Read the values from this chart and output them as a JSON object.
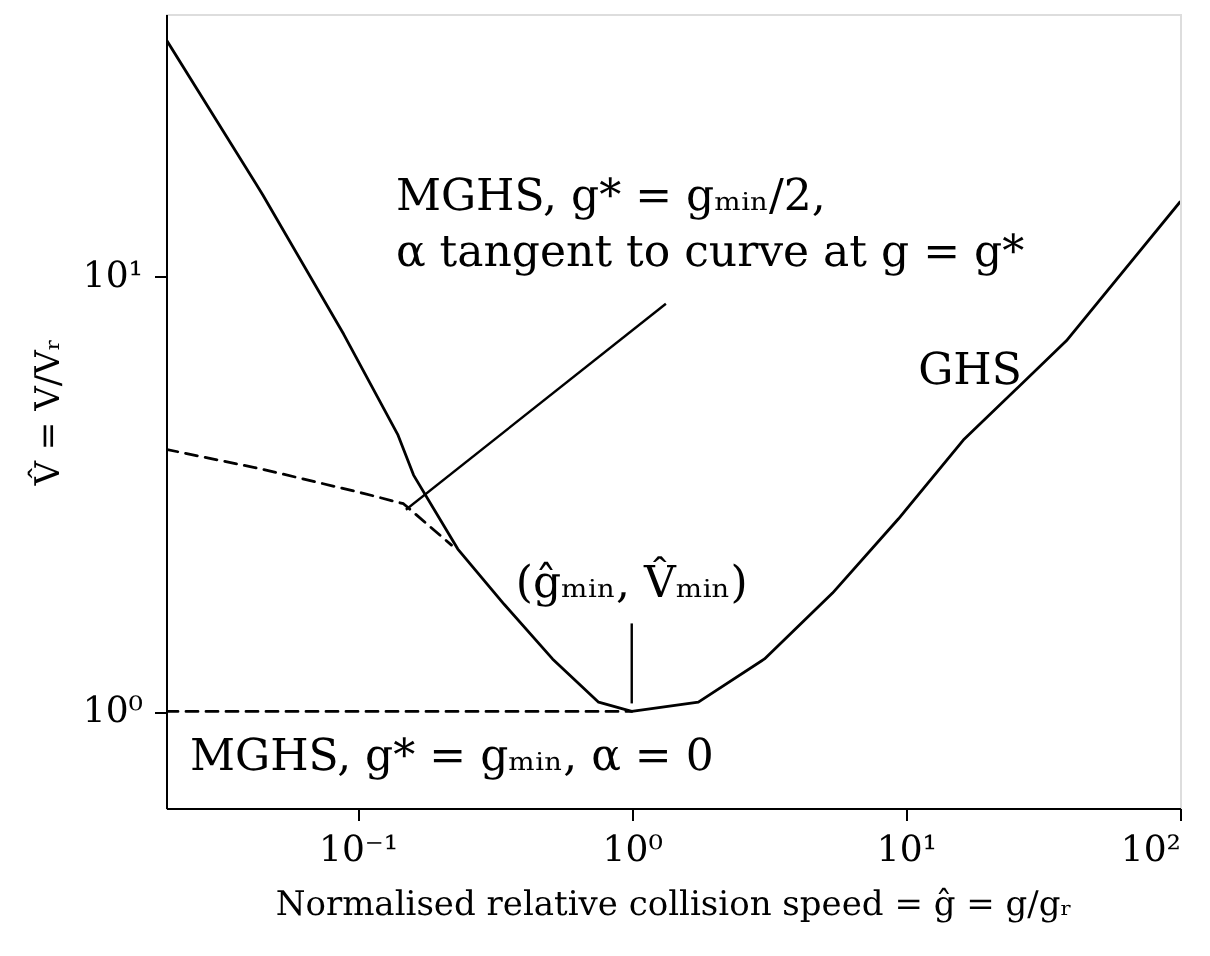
{
  "chart_data": {
    "type": "line",
    "log": "xy",
    "grid": false,
    "xlabel": "Normalised relative collision speed = ĝ = g/gᵣ",
    "ylabel": "V̂ = V/Vᵣ",
    "xlim": [
      0.02,
      100
    ],
    "ylim": [
      0.6,
      40
    ],
    "xticks": [
      {
        "value": 0.1,
        "label": "10⁻¹"
      },
      {
        "value": 1,
        "label": "10⁰"
      },
      {
        "value": 10,
        "label": "10¹"
      },
      {
        "value": 100,
        "label": "10²"
      }
    ],
    "yticks": [
      {
        "value": 1,
        "label": "10⁰"
      },
      {
        "value": 10,
        "label": "10¹"
      }
    ],
    "series": [
      {
        "color": "#000000",
        "line_style": "solid",
        "x": [
          0.02,
          0.045,
          0.089,
          0.14,
          0.16,
          0.232,
          0.343,
          0.514,
          0.757,
          1.0,
          1.75,
          3.05,
          5.4,
          9.4,
          16.2,
          38.5,
          100
        ],
        "values": [
          35,
          15.4,
          7.35,
          4.33,
          3.49,
          2.36,
          1.76,
          1.32,
          1.05,
          1.0,
          1.05,
          1.32,
          1.87,
          2.77,
          4.2,
          7.1,
          14.8
        ]
      },
      {
        "color": "#000000",
        "line_style": "dashed",
        "x": [
          0.02,
          0.045,
          0.105,
          0.147,
          0.22
        ],
        "values": [
          4.0,
          3.6,
          3.17,
          3.0,
          2.41
        ]
      },
      {
        "color": "#000000",
        "line_style": "dashed",
        "x": [
          0.02,
          1.0
        ],
        "values": [
          1.0,
          1.0
        ]
      }
    ],
    "annotations": [
      {
        "text": "MGHS, g* = gₘᵢₙ/2,\nα tangent to curve at g = g*",
        "x": 0.15,
        "y": 3.0
      },
      {
        "text": "(ĝₘᵢₙ, V̂ₘᵢₙ)",
        "x": 1,
        "y": 1
      },
      "GHS",
      "MGHS, g* = gₘᵢₙ, α = 0"
    ]
  }
}
